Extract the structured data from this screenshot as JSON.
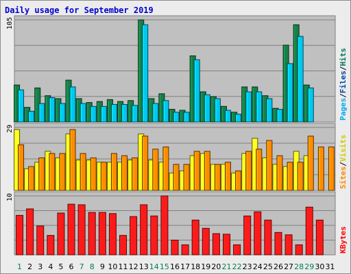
{
  "chart_data": {
    "type": "bar",
    "title": "Daily usage for September 2019",
    "categories": [
      "1",
      "2",
      "3",
      "4",
      "5",
      "6",
      "7",
      "8",
      "9",
      "10",
      "11",
      "12",
      "13",
      "14",
      "15",
      "16",
      "17",
      "18",
      "19",
      "20",
      "21",
      "22",
      "23",
      "24",
      "25",
      "26",
      "27",
      "28",
      "29",
      "30",
      "31"
    ],
    "weekend_days": [
      "1",
      "7",
      "8",
      "14",
      "15",
      "21",
      "22",
      "28",
      "29"
    ],
    "weekday_label_color": "#000000",
    "weekend_label_color": "#00804a",
    "panels": [
      {
        "id": "hits-files-pages",
        "ymax_label": "105",
        "ymax": 105,
        "legend": [
          {
            "text": "Pages",
            "color": "#00aaee"
          },
          {
            "text": "/",
            "color": "#000000"
          },
          {
            "text": "Files",
            "color": "#0044aa"
          },
          {
            "text": "/",
            "color": "#000000"
          },
          {
            "text": "Hits",
            "color": "#007755"
          }
        ],
        "series": [
          {
            "name": "Hits",
            "color": "#168048",
            "values": [
              38,
              15,
              35,
              27,
              24,
              43,
              24,
              20,
              21,
              23,
              21,
              22,
              105,
              24,
              29,
              13,
              12,
              68,
              31,
              26,
              16,
              10,
              36,
              36,
              27,
              14,
              79,
              100,
              38,
              0,
              0
            ]
          },
          {
            "name": "Files",
            "color": "#00c8f0",
            "values": [
              33,
              11,
              19,
              25,
              19,
              36,
              19,
              16,
              16,
              18,
              18,
              17,
              100,
              19,
              22,
              10,
              10,
              64,
              28,
              24,
              12,
              8,
              31,
              31,
              24,
              13,
              60,
              88,
              35,
              0,
              0
            ]
          }
        ]
      },
      {
        "id": "visits-sites",
        "ymax_label": "29",
        "ymax": 29,
        "legend": [
          {
            "text": "Sites",
            "color": "#ff8800"
          },
          {
            "text": "/",
            "color": "#000000"
          },
          {
            "text": "Visits",
            "color": "#cccc00"
          }
        ],
        "series": [
          {
            "name": "Visits",
            "color": "#ffff20",
            "values": [
              28,
              10,
              13,
              18,
              15,
              26,
              14,
              14,
              13,
              13,
              13,
              14,
              26,
              14,
              13,
              8,
              9,
              16,
              17,
              12,
              12,
              8,
              17,
              24,
              15,
              12,
              11,
              18,
              16,
              0,
              0
            ]
          },
          {
            "name": "Sites",
            "color": "#ff8c00",
            "values": [
              21,
              11,
              15,
              17,
              17,
              28,
              17,
              15,
              13,
              17,
              16,
              15,
              25,
              19,
              20,
              12,
              12,
              18,
              18,
              12,
              13,
              9,
              18,
              19,
              23,
              16,
              13,
              13,
              25,
              20,
              20
            ]
          }
        ]
      },
      {
        "id": "kbytes",
        "ymax_label": "10",
        "ymax": 10,
        "legend": [
          {
            "text": "KBytes",
            "color": "#ff0000"
          }
        ],
        "series": [
          {
            "name": "KBytes",
            "color": "#ff1a1a",
            "values": [
              6.7,
              7.8,
              4.9,
              3.3,
              7.1,
              8.6,
              8.5,
              7.2,
              7.2,
              7.0,
              3.3,
              6.5,
              8.5,
              6.6,
              10,
              2.5,
              1.7,
              5.9,
              4.5,
              3.6,
              3.5,
              1.7,
              6.6,
              7.3,
              5.9,
              3.8,
              3.4,
              1.7,
              8.1,
              5.9,
              0
            ]
          }
        ]
      }
    ]
  }
}
